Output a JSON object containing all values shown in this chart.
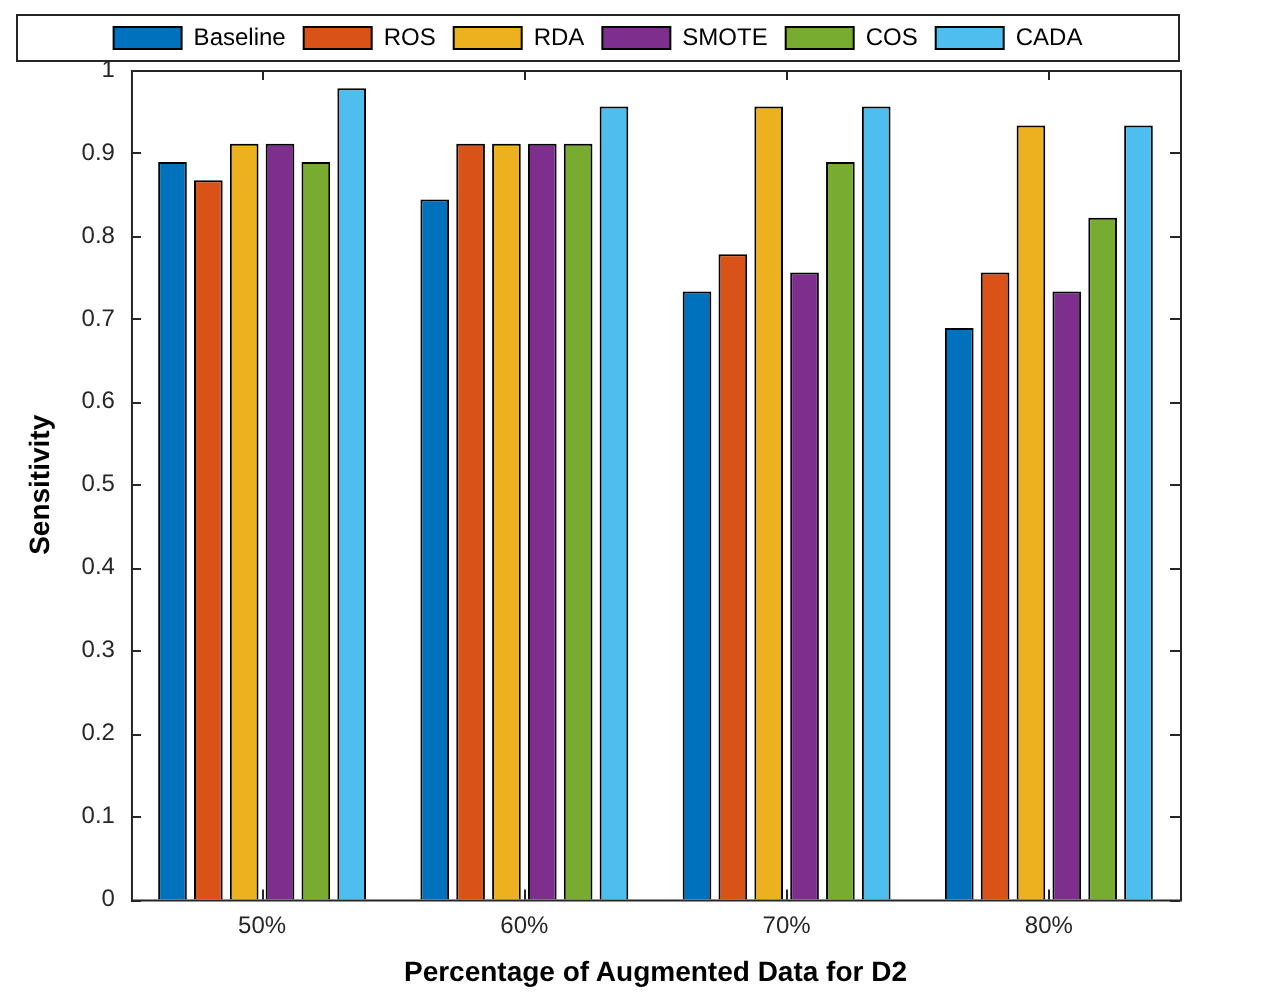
{
  "chart_data": {
    "type": "bar",
    "xlabel": "Percentage of Augmented Data for D2",
    "ylabel": "Sensitivity",
    "categories": [
      "50%",
      "60%",
      "70%",
      "80%"
    ],
    "series": [
      {
        "name": "Baseline",
        "color": "#0072bd",
        "values": [
          0.889,
          0.844,
          0.733,
          0.689
        ]
      },
      {
        "name": "ROS",
        "color": "#d95319",
        "values": [
          0.867,
          0.911,
          0.778,
          0.756
        ]
      },
      {
        "name": "RDA",
        "color": "#edb120",
        "values": [
          0.911,
          0.911,
          0.956,
          0.933
        ]
      },
      {
        "name": "SMOTE",
        "color": "#7e2f8e",
        "values": [
          0.911,
          0.911,
          0.756,
          0.733
        ]
      },
      {
        "name": "COS",
        "color": "#77ac30",
        "values": [
          0.889,
          0.911,
          0.889,
          0.822
        ]
      },
      {
        "name": "CADA",
        "color": "#4dbeee",
        "values": [
          0.978,
          0.956,
          0.956,
          0.933
        ]
      }
    ],
    "ylim": [
      0,
      1
    ],
    "yticks": [
      0,
      0.1,
      0.2,
      0.3,
      0.4,
      0.5,
      0.6,
      0.7,
      0.8,
      0.9,
      1
    ],
    "grid": false,
    "legend": "top"
  }
}
